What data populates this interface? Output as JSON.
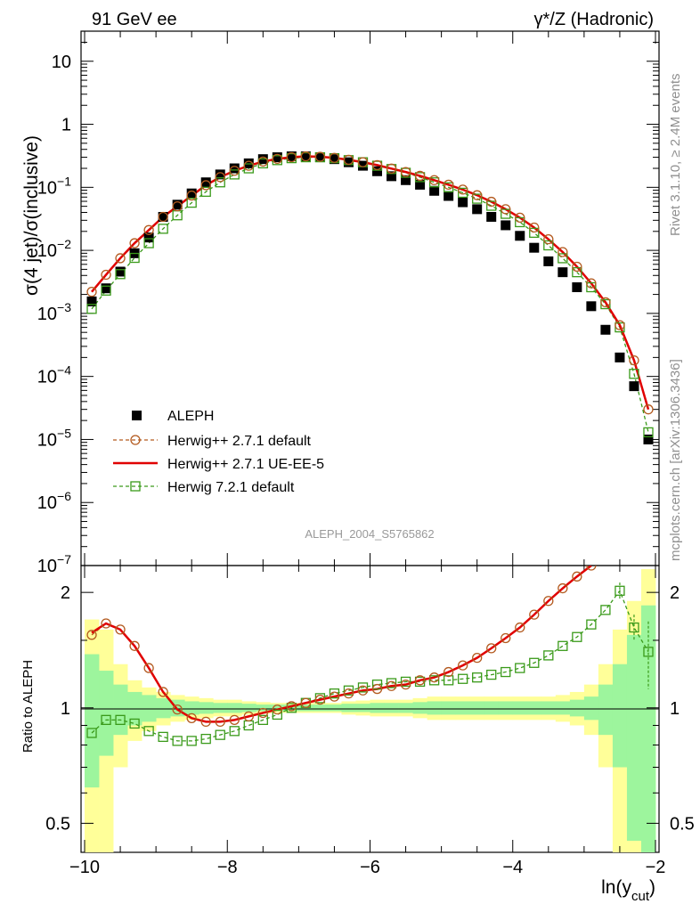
{
  "header": {
    "left": "91 GeV ee",
    "right": "γ*/Z (Hadronic)"
  },
  "side_labels": {
    "rivet": "Rivet 3.1.10, ≥ 2.4M events",
    "mcplots": "mcplots.cern.ch [arXiv:1306.3436]"
  },
  "watermark": "ALEPH_2004_S5765862",
  "colors": {
    "aleph": "#000000",
    "h271_default": "#b35a1f",
    "h271_ueee5": "#e00000",
    "h721": "#3a9a1a",
    "band_inner": "#9df59d",
    "band_outer": "#ffff99"
  },
  "chart_data": [
    {
      "type": "scatter",
      "panel": "main",
      "ylabel": "σ(4 jet)/σ(inclusive)",
      "y_scale": "log",
      "ylim": [
        1e-07,
        30
      ],
      "xlim": [
        -10.05,
        -1.95
      ],
      "y_ticks": [
        "10⁻⁷",
        "10⁻⁶",
        "10⁻⁵",
        "10⁻⁴",
        "10⁻³",
        "10⁻²",
        "10⁻¹",
        "1",
        "10"
      ],
      "x": [
        -9.9,
        -9.7,
        -9.5,
        -9.3,
        -9.1,
        -8.9,
        -8.7,
        -8.5,
        -8.3,
        -8.1,
        -7.9,
        -7.7,
        -7.5,
        -7.3,
        -7.1,
        -6.9,
        -6.7,
        -6.5,
        -6.3,
        -6.1,
        -5.9,
        -5.7,
        -5.5,
        -5.3,
        -5.1,
        -4.9,
        -4.7,
        -4.5,
        -4.3,
        -4.1,
        -3.9,
        -3.7,
        -3.5,
        -3.3,
        -3.1,
        -2.9,
        -2.7,
        -2.5,
        -2.3,
        -2.1
      ],
      "legend": [
        "ALEPH",
        "Herwig++ 2.7.1 default",
        "Herwig++ 2.7.1 UE-EE-5",
        "Herwig 7.2.1 default"
      ],
      "legend_position": "lower-left",
      "series": [
        {
          "name": "ALEPH",
          "values": [
            0.00155,
            0.0025,
            0.0046,
            0.009,
            0.016,
            0.034,
            0.053,
            0.08,
            0.12,
            0.16,
            0.2,
            0.24,
            0.28,
            0.3,
            0.31,
            0.31,
            0.3,
            0.28,
            0.25,
            0.22,
            0.18,
            0.15,
            0.13,
            0.11,
            0.088,
            0.073,
            0.058,
            0.045,
            0.034,
            0.025,
            0.017,
            0.011,
            0.0067,
            0.0045,
            0.0026,
            0.0013,
            0.00055,
            0.0002,
            7e-05,
            1e-05
          ]
        },
        {
          "name": "Herwig++ 2.7.1 default",
          "values": [
            0.0022,
            0.0041,
            0.0075,
            0.013,
            0.021,
            0.034,
            0.05,
            0.074,
            0.108,
            0.145,
            0.183,
            0.22,
            0.256,
            0.283,
            0.3,
            0.31,
            0.305,
            0.293,
            0.273,
            0.25,
            0.225,
            0.198,
            0.175,
            0.152,
            0.13,
            0.11,
            0.092,
            0.075,
            0.059,
            0.045,
            0.033,
            0.023,
            0.015,
            0.0094,
            0.0055,
            0.003,
            0.0015,
            0.00065,
            0.00018,
            3e-05
          ]
        },
        {
          "name": "Herwig++ 2.7.1 UE-EE-5",
          "values": [
            0.0022,
            0.0041,
            0.0075,
            0.013,
            0.021,
            0.034,
            0.05,
            0.074,
            0.108,
            0.145,
            0.183,
            0.22,
            0.256,
            0.283,
            0.3,
            0.31,
            0.305,
            0.293,
            0.273,
            0.25,
            0.225,
            0.198,
            0.175,
            0.152,
            0.13,
            0.11,
            0.092,
            0.075,
            0.059,
            0.045,
            0.033,
            0.023,
            0.015,
            0.0094,
            0.0055,
            0.003,
            0.0015,
            0.00065,
            0.00018,
            3e-05
          ]
        },
        {
          "name": "Herwig 7.2.1 default",
          "values": [
            0.00118,
            0.0023,
            0.0042,
            0.0076,
            0.013,
            0.022,
            0.036,
            0.057,
            0.085,
            0.12,
            0.16,
            0.2,
            0.24,
            0.27,
            0.29,
            0.3,
            0.3,
            0.29,
            0.27,
            0.25,
            0.22,
            0.195,
            0.17,
            0.145,
            0.12,
            0.1,
            0.082,
            0.066,
            0.051,
            0.038,
            0.028,
            0.019,
            0.012,
            0.0075,
            0.0045,
            0.0026,
            0.0014,
            0.0006,
            0.00011,
            1.3e-05
          ]
        }
      ]
    },
    {
      "type": "scatter",
      "panel": "ratio",
      "ylabel": "Ratio to ALEPH",
      "xlabel": "ln(y_cut)",
      "y_scale": "log",
      "ylim": [
        0.42,
        2.35
      ],
      "xlim": [
        -10.05,
        -1.95
      ],
      "x_ticks": [
        -10,
        -8,
        -6,
        -4,
        -2
      ],
      "y_ticks": [
        0.5,
        1,
        2
      ],
      "x": [
        -9.9,
        -9.7,
        -9.5,
        -9.3,
        -9.1,
        -8.9,
        -8.7,
        -8.5,
        -8.3,
        -8.1,
        -7.9,
        -7.7,
        -7.5,
        -7.3,
        -7.1,
        -6.9,
        -6.7,
        -6.5,
        -6.3,
        -6.1,
        -5.9,
        -5.7,
        -5.5,
        -5.3,
        -5.1,
        -4.9,
        -4.7,
        -4.5,
        -4.3,
        -4.1,
        -3.9,
        -3.7,
        -3.5,
        -3.3,
        -3.1,
        -2.9,
        -2.7,
        -2.5,
        -2.3,
        -2.1
      ],
      "bands": {
        "inner": [
          0.38,
          0.25,
          0.15,
          0.1,
          0.08,
          0.06,
          0.05,
          0.04,
          0.035,
          0.03,
          0.03,
          0.025,
          0.02,
          0.02,
          0.02,
          0.02,
          0.02,
          0.02,
          0.025,
          0.025,
          0.03,
          0.03,
          0.03,
          0.035,
          0.04,
          0.04,
          0.04,
          0.04,
          0.04,
          0.04,
          0.04,
          0.04,
          0.04,
          0.04,
          0.05,
          0.07,
          0.15,
          0.3,
          0.55,
          0.85
        ],
        "outer": [
          0.7,
          0.6,
          0.3,
          0.18,
          0.13,
          0.1,
          0.08,
          0.07,
          0.06,
          0.05,
          0.05,
          0.04,
          0.035,
          0.03,
          0.03,
          0.03,
          0.03,
          0.03,
          0.04,
          0.045,
          0.05,
          0.05,
          0.05,
          0.06,
          0.07,
          0.07,
          0.07,
          0.07,
          0.07,
          0.07,
          0.07,
          0.07,
          0.07,
          0.08,
          0.1,
          0.15,
          0.3,
          0.6,
          0.9,
          1.3
        ]
      },
      "series": [
        {
          "name": "Herwig++ 2.7.1 default",
          "values": [
            1.55,
            1.66,
            1.6,
            1.45,
            1.27,
            1.1,
            0.99,
            0.94,
            0.92,
            0.92,
            0.93,
            0.95,
            0.97,
            0.99,
            1.01,
            1.03,
            1.05,
            1.07,
            1.09,
            1.11,
            1.12,
            1.14,
            1.15,
            1.18,
            1.2,
            1.24,
            1.29,
            1.35,
            1.43,
            1.52,
            1.62,
            1.75,
            1.9,
            2.05,
            2.2,
            2.35
          ]
        },
        {
          "name": "Herwig++ 2.7.1 UE-EE-5",
          "values": [
            1.57,
            1.66,
            1.6,
            1.45,
            1.27,
            1.1,
            0.99,
            0.94,
            0.92,
            0.92,
            0.93,
            0.95,
            0.97,
            0.99,
            1.01,
            1.03,
            1.05,
            1.07,
            1.09,
            1.11,
            1.12,
            1.14,
            1.15,
            1.18,
            1.2,
            1.24,
            1.29,
            1.35,
            1.43,
            1.52,
            1.62,
            1.75,
            1.9,
            2.05,
            2.2,
            2.35
          ]
        },
        {
          "name": "Herwig 7.2.1 default",
          "values": [
            0.86,
            0.93,
            0.93,
            0.91,
            0.87,
            0.84,
            0.82,
            0.82,
            0.83,
            0.85,
            0.87,
            0.9,
            0.93,
            0.96,
            1.0,
            1.03,
            1.06,
            1.09,
            1.11,
            1.13,
            1.15,
            1.16,
            1.17,
            1.17,
            1.18,
            1.18,
            1.19,
            1.2,
            1.22,
            1.24,
            1.27,
            1.31,
            1.37,
            1.45,
            1.53,
            1.65,
            1.8,
            2.02,
            1.62,
            1.4
          ]
        }
      ]
    }
  ]
}
